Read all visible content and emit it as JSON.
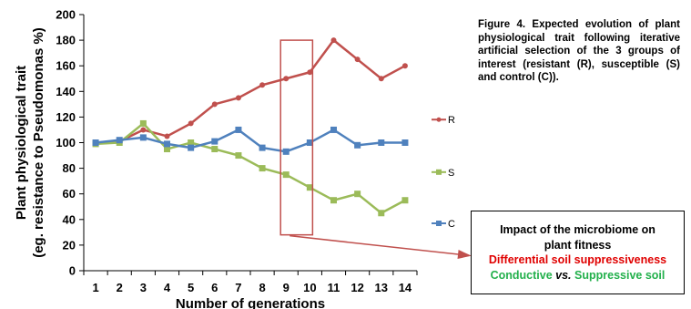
{
  "chart_data": {
    "type": "line",
    "categories": [
      1,
      2,
      3,
      4,
      5,
      6,
      7,
      8,
      9,
      10,
      11,
      12,
      13,
      14
    ],
    "xlabel": "Number of generations",
    "ylabel_lines": [
      "Plant physiological trait",
      "(eg. resistance to Pseudomonas %)"
    ],
    "ylim": [
      0,
      200
    ],
    "yticks": [
      0,
      20,
      40,
      60,
      80,
      100,
      120,
      140,
      160,
      180,
      200
    ],
    "grid": false,
    "legend_position": "right",
    "highlight_range": [
      9,
      10
    ],
    "series": [
      {
        "name": "R",
        "color": "#c0504d",
        "marker": "circle",
        "values": [
          100,
          101,
          110,
          105,
          115,
          130,
          135,
          145,
          150,
          155,
          180,
          165,
          150,
          160
        ]
      },
      {
        "name": "S",
        "color": "#9bbb59",
        "marker": "square",
        "values": [
          99,
          100,
          115,
          95,
          100,
          95,
          90,
          80,
          75,
          65,
          55,
          60,
          45,
          55
        ]
      },
      {
        "name": "C",
        "color": "#4f81bd",
        "marker": "square",
        "values": [
          100,
          102,
          104,
          99,
          96,
          101,
          110,
          96,
          93,
          100,
          110,
          98,
          100,
          100
        ]
      }
    ]
  },
  "caption": "Figure 4. Expected evolution of plant physiological trait following iterative artificial selection of the 3 groups of interest (resistant (R), susceptible (S) and control (C)).",
  "impact_box": {
    "line1": "Impact of the microbiome on",
    "line2": "plant fitness",
    "line3": "Differential soil suppressiveness",
    "line4_a": "Conductive ",
    "line4_b": "vs.",
    "line4_c": " Suppressive soil"
  },
  "colors": {
    "highlight": "#c0504d",
    "arrow": "#c0504d",
    "impact_red": "#e00000",
    "impact_green": "#22b04b"
  }
}
